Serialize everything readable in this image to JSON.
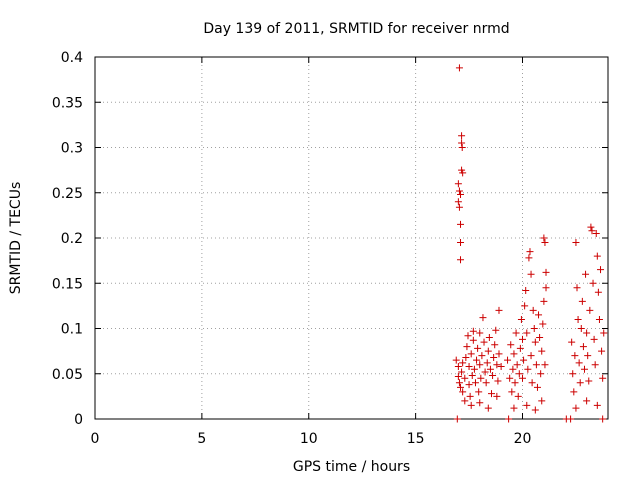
{
  "chart_data": {
    "type": "scatter",
    "title": "Day 139 of 2011, SRMTID for receiver nrmd",
    "xlabel": "GPS time / hours",
    "ylabel": "SRMTID / TECUs",
    "xlim": [
      0,
      24
    ],
    "ylim": [
      0,
      0.4
    ],
    "xticks": [
      0,
      5,
      10,
      15,
      20
    ],
    "yticks": [
      0,
      0.05,
      0.1,
      0.15,
      0.2,
      0.25,
      0.3,
      0.35,
      0.4
    ],
    "xtick_labels": [
      "0",
      "5",
      "10",
      "15",
      "20"
    ],
    "ytick_labels": [
      "0",
      "0.05",
      "0.1",
      "0.15",
      "0.2",
      "0.25",
      "0.3",
      "0.35",
      "0.4"
    ],
    "grid": true,
    "marker_color": "#cc0000",
    "series": [
      {
        "marker": "plus",
        "points": [
          [
            17.05,
            0.388
          ],
          [
            17.15,
            0.313
          ],
          [
            17.15,
            0.305
          ],
          [
            17.18,
            0.3
          ],
          [
            17.15,
            0.275
          ],
          [
            17.2,
            0.272
          ],
          [
            17.0,
            0.26
          ],
          [
            17.05,
            0.252
          ],
          [
            17.1,
            0.248
          ],
          [
            17.0,
            0.24
          ],
          [
            17.05,
            0.234
          ],
          [
            17.1,
            0.215
          ],
          [
            17.1,
            0.195
          ],
          [
            17.1,
            0.176
          ],
          [
            16.9,
            0.065
          ],
          [
            17.0,
            0.058
          ],
          [
            17.0,
            0.047
          ],
          [
            17.05,
            0.04
          ],
          [
            17.1,
            0.035
          ],
          [
            17.15,
            0.052
          ],
          [
            17.2,
            0.062
          ],
          [
            17.2,
            0.03
          ],
          [
            17.3,
            0.045
          ],
          [
            17.35,
            0.068
          ],
          [
            17.4,
            0.08
          ],
          [
            17.45,
            0.092
          ],
          [
            17.5,
            0.058
          ],
          [
            17.5,
            0.038
          ],
          [
            17.55,
            0.025
          ],
          [
            17.6,
            0.072
          ],
          [
            17.65,
            0.048
          ],
          [
            17.7,
            0.087
          ],
          [
            17.7,
            0.097
          ],
          [
            17.75,
            0.055
          ],
          [
            17.8,
            0.04
          ],
          [
            17.85,
            0.065
          ],
          [
            17.9,
            0.078
          ],
          [
            17.95,
            0.03
          ],
          [
            18.0,
            0.095
          ],
          [
            18.0,
            0.06
          ],
          [
            18.05,
            0.045
          ],
          [
            18.1,
            0.07
          ],
          [
            18.15,
            0.112
          ],
          [
            18.2,
            0.085
          ],
          [
            18.25,
            0.052
          ],
          [
            18.3,
            0.04
          ],
          [
            18.35,
            0.062
          ],
          [
            18.4,
            0.075
          ],
          [
            18.45,
            0.09
          ],
          [
            18.5,
            0.055
          ],
          [
            18.55,
            0.028
          ],
          [
            18.6,
            0.048
          ],
          [
            18.65,
            0.068
          ],
          [
            18.7,
            0.082
          ],
          [
            18.75,
            0.098
          ],
          [
            18.8,
            0.06
          ],
          [
            18.85,
            0.042
          ],
          [
            18.9,
            0.072
          ],
          [
            18.9,
            0.12
          ],
          [
            19.0,
            0.058
          ],
          [
            17.3,
            0.02
          ],
          [
            17.6,
            0.015
          ],
          [
            18.0,
            0.018
          ],
          [
            18.4,
            0.012
          ],
          [
            18.8,
            0.025
          ],
          [
            19.3,
            0.065
          ],
          [
            19.4,
            0.045
          ],
          [
            19.45,
            0.082
          ],
          [
            19.5,
            0.03
          ],
          [
            19.55,
            0.055
          ],
          [
            19.6,
            0.072
          ],
          [
            19.65,
            0.04
          ],
          [
            19.7,
            0.095
          ],
          [
            19.75,
            0.06
          ],
          [
            19.8,
            0.025
          ],
          [
            19.85,
            0.05
          ],
          [
            19.9,
            0.078
          ],
          [
            19.95,
            0.11
          ],
          [
            20.0,
            0.088
          ],
          [
            20.0,
            0.045
          ],
          [
            20.05,
            0.065
          ],
          [
            20.1,
            0.125
          ],
          [
            20.15,
            0.142
          ],
          [
            20.2,
            0.095
          ],
          [
            20.25,
            0.055
          ],
          [
            20.3,
            0.178
          ],
          [
            20.35,
            0.185
          ],
          [
            20.4,
            0.16
          ],
          [
            20.4,
            0.07
          ],
          [
            20.45,
            0.04
          ],
          [
            20.5,
            0.12
          ],
          [
            20.55,
            0.1
          ],
          [
            20.6,
            0.085
          ],
          [
            20.65,
            0.06
          ],
          [
            20.7,
            0.035
          ],
          [
            20.75,
            0.115
          ],
          [
            20.8,
            0.09
          ],
          [
            20.85,
            0.05
          ],
          [
            20.9,
            0.075
          ],
          [
            20.95,
            0.105
          ],
          [
            21.0,
            0.13
          ],
          [
            21.0,
            0.2
          ],
          [
            21.05,
            0.195
          ],
          [
            21.1,
            0.162
          ],
          [
            21.1,
            0.145
          ],
          [
            21.05,
            0.06
          ],
          [
            20.2,
            0.015
          ],
          [
            20.6,
            0.01
          ],
          [
            20.9,
            0.02
          ],
          [
            19.6,
            0.012
          ],
          [
            22.3,
            0.085
          ],
          [
            22.35,
            0.05
          ],
          [
            22.4,
            0.03
          ],
          [
            22.45,
            0.07
          ],
          [
            22.5,
            0.195
          ],
          [
            22.55,
            0.145
          ],
          [
            22.6,
            0.11
          ],
          [
            22.65,
            0.062
          ],
          [
            22.7,
            0.04
          ],
          [
            22.75,
            0.1
          ],
          [
            22.8,
            0.13
          ],
          [
            22.85,
            0.08
          ],
          [
            22.9,
            0.055
          ],
          [
            22.95,
            0.16
          ],
          [
            23.0,
            0.095
          ],
          [
            23.05,
            0.07
          ],
          [
            23.1,
            0.042
          ],
          [
            23.15,
            0.12
          ],
          [
            23.2,
            0.212
          ],
          [
            23.25,
            0.208
          ],
          [
            23.3,
            0.15
          ],
          [
            23.35,
            0.088
          ],
          [
            23.4,
            0.06
          ],
          [
            23.45,
            0.205
          ],
          [
            23.5,
            0.18
          ],
          [
            23.55,
            0.14
          ],
          [
            23.6,
            0.11
          ],
          [
            23.65,
            0.165
          ],
          [
            23.7,
            0.075
          ],
          [
            23.75,
            0.045
          ],
          [
            23.8,
            0.095
          ],
          [
            22.5,
            0.012
          ],
          [
            23.0,
            0.02
          ],
          [
            23.5,
            0.015
          ],
          [
            16.95,
            0.0
          ],
          [
            19.35,
            0.0
          ],
          [
            22.05,
            0.0
          ],
          [
            22.25,
            0.0
          ],
          [
            23.75,
            0.0
          ]
        ]
      }
    ]
  }
}
